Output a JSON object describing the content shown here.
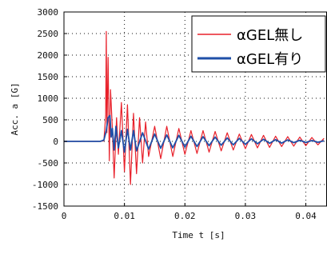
{
  "chart_data": {
    "type": "line",
    "xlabel": "Time t [s]",
    "ylabel": "Acc. a [G]",
    "xlim": [
      0,
      0.0435
    ],
    "ylim": [
      -1500,
      3000
    ],
    "x_ticks": [
      0,
      0.01,
      0.02,
      0.03,
      0.04
    ],
    "x_tick_labels": [
      "0",
      "0.01",
      "0.02",
      "0.03",
      "0.04"
    ],
    "y_ticks": [
      -1500,
      -1000,
      -500,
      0,
      500,
      1000,
      1500,
      2000,
      2500,
      3000
    ],
    "y_tick_labels": [
      "-1500",
      "-1000",
      "-500",
      "0",
      "500",
      "1000",
      "1500",
      "2000",
      "2500",
      "3000"
    ],
    "grid": true,
    "legend_position": "top-right",
    "series": [
      {
        "name": "αGEL無し",
        "color": "#e8202a",
        "x": [
          0,
          0.006,
          0.0066,
          0.0069,
          0.007,
          0.0071,
          0.0073,
          0.0075,
          0.0077,
          0.008,
          0.0083,
          0.0087,
          0.009,
          0.0095,
          0.01,
          0.0105,
          0.011,
          0.0115,
          0.012,
          0.0125,
          0.013,
          0.0135,
          0.014,
          0.015,
          0.016,
          0.017,
          0.018,
          0.019,
          0.02,
          0.021,
          0.022,
          0.023,
          0.024,
          0.025,
          0.026,
          0.027,
          0.028,
          0.029,
          0.03,
          0.031,
          0.032,
          0.033,
          0.034,
          0.035,
          0.036,
          0.037,
          0.038,
          0.039,
          0.04,
          0.041,
          0.042,
          0.043
        ],
        "values": [
          0,
          0,
          10,
          600,
          2550,
          200,
          1950,
          -450,
          1200,
          300,
          -850,
          550,
          -300,
          900,
          -700,
          850,
          -1000,
          650,
          -750,
          550,
          -500,
          450,
          -350,
          350,
          -400,
          350,
          -350,
          300,
          -300,
          250,
          -280,
          250,
          -250,
          230,
          -220,
          200,
          -200,
          170,
          -170,
          160,
          -150,
          140,
          -140,
          120,
          -120,
          110,
          -110,
          100,
          -100,
          90,
          -80,
          70
        ]
      },
      {
        "name": "αGEL有り",
        "color": "#1f4fa8",
        "x": [
          0,
          0.006,
          0.0066,
          0.007,
          0.0073,
          0.0076,
          0.0078,
          0.008,
          0.0083,
          0.0086,
          0.009,
          0.0095,
          0.01,
          0.0105,
          0.011,
          0.0115,
          0.012,
          0.013,
          0.014,
          0.015,
          0.016,
          0.017,
          0.018,
          0.019,
          0.02,
          0.021,
          0.022,
          0.023,
          0.024,
          0.025,
          0.026,
          0.027,
          0.028,
          0.029,
          0.03,
          0.031,
          0.032,
          0.033,
          0.034,
          0.035,
          0.036,
          0.037,
          0.038,
          0.039,
          0.04,
          0.041,
          0.042,
          0.043
        ],
        "values": [
          0,
          0,
          30,
          250,
          550,
          600,
          100,
          300,
          -200,
          350,
          -150,
          250,
          -250,
          280,
          -200,
          250,
          -220,
          200,
          -180,
          170,
          -160,
          150,
          -150,
          140,
          -130,
          120,
          -120,
          110,
          -100,
          100,
          -90,
          80,
          -80,
          70,
          -70,
          60,
          -55,
          50,
          -45,
          40,
          -40,
          35,
          -30,
          25,
          -25,
          20,
          -20,
          15
        ]
      }
    ]
  }
}
